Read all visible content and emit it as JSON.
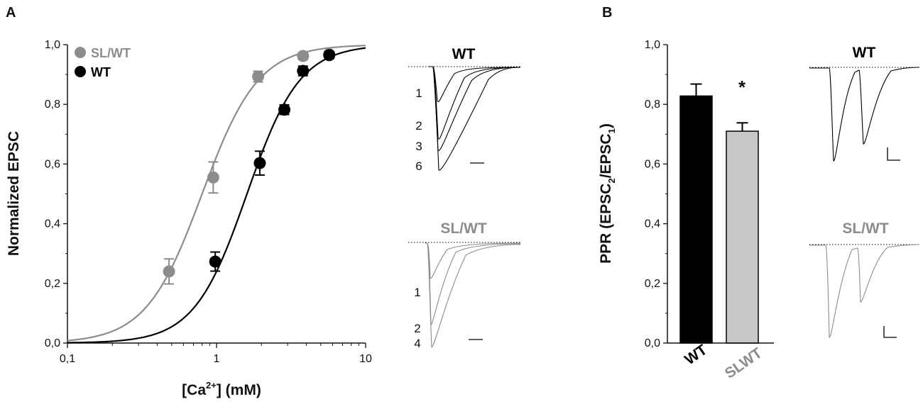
{
  "panels": {
    "a": "A",
    "b": "B"
  },
  "colors": {
    "wt": "#000000",
    "slwt": "#8c8c8c",
    "slwt_bar": "#c8c8c8",
    "axis": "#111111"
  },
  "chart_data": [
    {
      "type": "scatter",
      "title": "",
      "xlabel_main": "[Ca",
      "xlabel_sup": "2+",
      "xlabel_tail": "] (mM)",
      "ylabel": "Normalized EPSC",
      "xscale": "log",
      "xlim": [
        0.1,
        10
      ],
      "ylim": [
        0,
        1
      ],
      "x_ticks": [
        0.1,
        1,
        10
      ],
      "x_tick_labels": [
        "0,1",
        "1",
        "10"
      ],
      "y_ticks": [
        0,
        0.2,
        0.4,
        0.6,
        0.8,
        1.0
      ],
      "y_tick_labels": [
        "0,0",
        "0,2",
        "0,4",
        "0,6",
        "0,8",
        "1,0"
      ],
      "legend": [
        "SL/WT",
        "WT"
      ],
      "series": [
        {
          "name": "SL/WT",
          "x": [
            0.48,
            0.95,
            1.9,
            3.8,
            5.7
          ],
          "y": [
            0.24,
            0.555,
            0.893,
            0.962,
            0.968
          ],
          "err": [
            0.042,
            0.052,
            0.018,
            0.012,
            0.01
          ],
          "fit": {
            "ec50": 0.8,
            "hill": 2.3
          }
        },
        {
          "name": "WT",
          "x": [
            0.98,
            1.95,
            2.85,
            3.8,
            5.7
          ],
          "y": [
            0.273,
            0.603,
            0.782,
            0.912,
            0.965
          ],
          "err": [
            0.032,
            0.04,
            0.016,
            0.016,
            0.012
          ],
          "fit": {
            "ec50": 1.6,
            "hill": 2.45
          }
        }
      ]
    },
    {
      "type": "bar",
      "title": "",
      "ylabel_prefix": "PPR (EPSC",
      "ylabel_sub2": "2",
      "ylabel_mid": "/EPSC",
      "ylabel_sub1": "1",
      "ylabel_suffix": ")",
      "categories": [
        "WT",
        "SLWT"
      ],
      "values": [
        0.828,
        0.71
      ],
      "errors": [
        0.04,
        0.028
      ],
      "ylim": [
        0,
        1
      ],
      "y_ticks": [
        0,
        0.2,
        0.4,
        0.6,
        0.8,
        1.0
      ],
      "y_tick_labels": [
        "0,0",
        "0,2",
        "0,4",
        "0,6",
        "0,8",
        "1,0"
      ],
      "significance": "*"
    }
  ],
  "traces": {
    "panel_a_wt": {
      "title": "WT",
      "labels": [
        "1",
        "2",
        "3",
        "6"
      ]
    },
    "panel_a_slwt": {
      "title": "SL/WT",
      "labels": [
        "1",
        "2",
        "4"
      ]
    },
    "panel_b_wt": {
      "title": "WT"
    },
    "panel_b_slwt": {
      "title": "SL/WT"
    }
  }
}
